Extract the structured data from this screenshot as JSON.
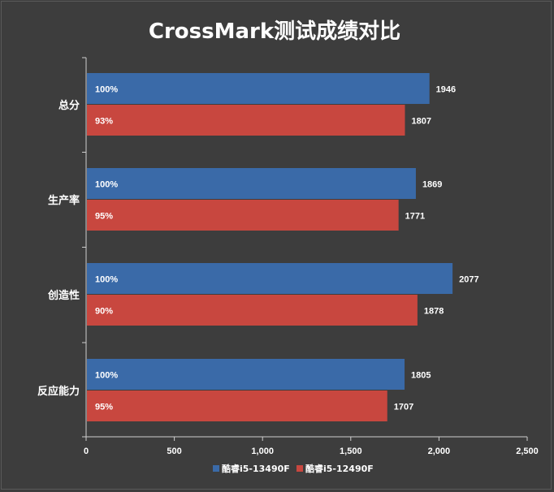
{
  "chart_data": {
    "type": "bar",
    "orientation": "horizontal",
    "title": "CrossMark测试成绩对比",
    "categories": [
      "总分",
      "生产率",
      "创造性",
      "反应能力"
    ],
    "series": [
      {
        "name": "酷睿i5-13490F",
        "color": "#3a6aa8",
        "values": [
          1946,
          1869,
          2077,
          1805
        ],
        "labels": [
          "100%",
          "100%",
          "100%",
          "100%"
        ]
      },
      {
        "name": "酷睿i5-12490F",
        "color": "#c8473f",
        "values": [
          1807,
          1771,
          1878,
          1707
        ],
        "labels": [
          "93%",
          "95%",
          "90%",
          "95%"
        ]
      }
    ],
    "xlim": [
      0,
      2500
    ],
    "xticks": [
      0,
      500,
      1000,
      1500,
      2000,
      2500
    ],
    "xtick_labels": [
      "0",
      "500",
      "1,000",
      "1,500",
      "2,000",
      "2,500"
    ],
    "grid": false,
    "legend_position": "bottom"
  }
}
